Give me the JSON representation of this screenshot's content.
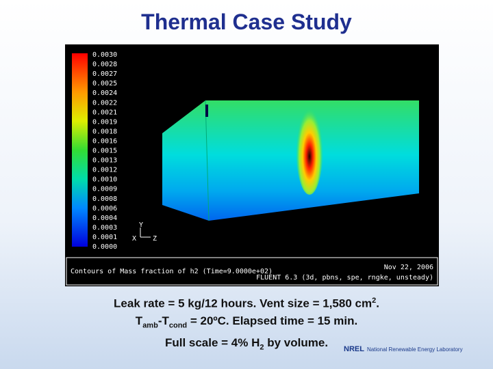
{
  "title": "Thermal Case Study",
  "figure": {
    "colorbar_labels": [
      "0.0030",
      "0.0028",
      "0.0027",
      "0.0025",
      "0.0024",
      "0.0022",
      "0.0021",
      "0.0019",
      "0.0018",
      "0.0016",
      "0.0015",
      "0.0013",
      "0.0012",
      "0.0010",
      "0.0009",
      "0.0008",
      "0.0006",
      "0.0004",
      "0.0003",
      "0.0001",
      "0.0000"
    ],
    "axes": {
      "y": "Y",
      "x": "X",
      "z": "Z"
    },
    "footer": {
      "contours": "Contours of Mass fraction of h2  (Time=9.0000e+02)",
      "date": "Nov 22, 2006",
      "solver": "FLUENT 6.3 (3d, pbns, spe, rngke, unsteady)"
    }
  },
  "caption": {
    "line1": {
      "text": "Leak rate = 5 kg/12 hours. Vent size = 1,580 cm",
      "sup": "2",
      "end": "."
    },
    "line2": {
      "t1": "T",
      "sub1": "amb",
      "t2": "-T",
      "sub2": "cond",
      "end": " = 20ºC.  Elapsed time = 15 min."
    },
    "line3": {
      "text": "Full scale = 4% H",
      "sub": "2",
      "end": " by volume."
    }
  },
  "logo": {
    "mark": "NREL",
    "name": "National Renewable Energy Laboratory"
  }
}
